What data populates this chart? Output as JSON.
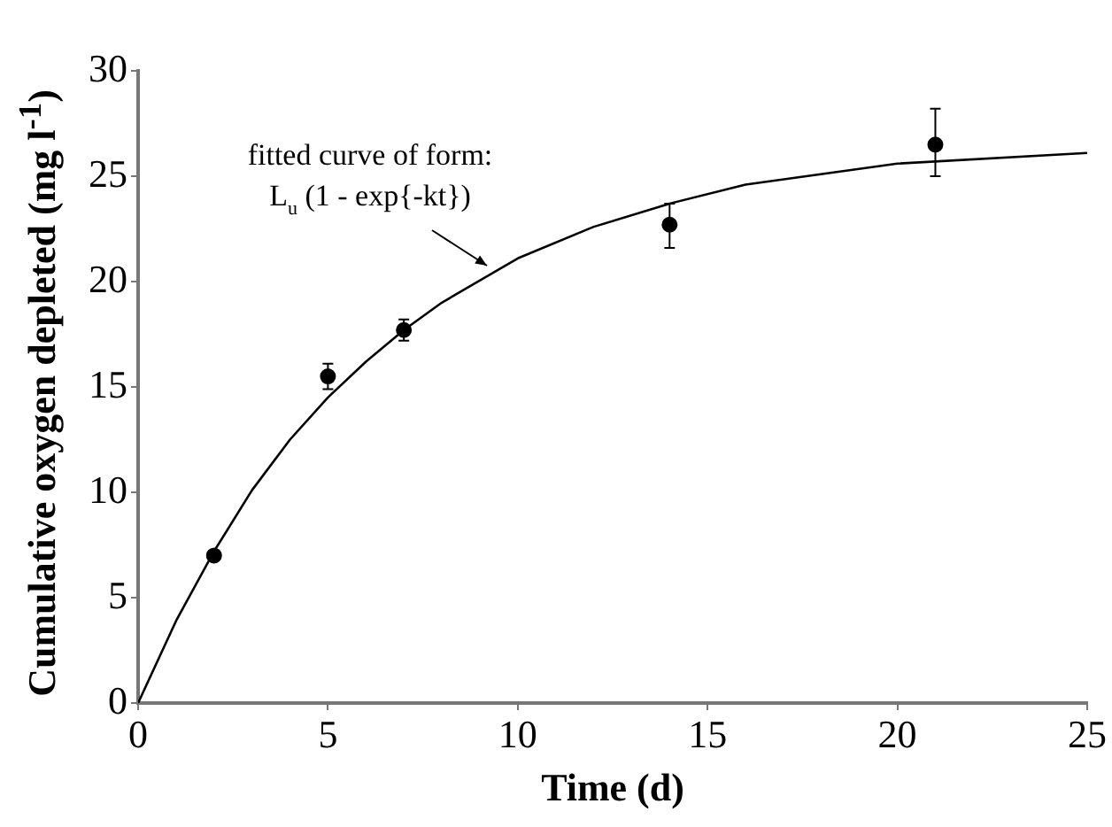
{
  "chart_data": {
    "type": "scatter",
    "xlabel": "Time (d)",
    "ylabel": "Cumulative oxygen depleted (mg l$^{-1}$)",
    "xlim": [
      0,
      25
    ],
    "xticks": [
      0,
      5,
      10,
      15,
      20,
      25
    ],
    "ylim": [
      0,
      30
    ],
    "yticks": [
      0,
      5,
      10,
      15,
      20,
      25,
      30
    ],
    "grid": false,
    "legend": false,
    "series": [
      {
        "type": "scatter",
        "color": "#000000",
        "marker": "circle",
        "x": [
          2,
          5,
          7,
          14,
          21
        ],
        "values": [
          7.0,
          15.5,
          17.7,
          22.7,
          26.5
        ],
        "errors": [
          null,
          0.6,
          0.5,
          [
            21.6,
            23.7
          ],
          [
            25.0,
            28.2
          ]
        ]
      },
      {
        "type": "line",
        "color": "#000000",
        "marker": "none",
        "x": [
          0,
          1,
          2,
          3,
          4,
          5,
          6,
          7,
          8,
          10,
          12,
          14,
          16,
          20,
          25
        ],
        "values": [
          0,
          3.9,
          7.2,
          10.1,
          12.5,
          14.5,
          16.2,
          17.7,
          19.0,
          21.1,
          22.6,
          23.7,
          24.6,
          25.6,
          26.1
        ]
      }
    ],
    "annotations": [
      "fitted curve of form:",
      "L$_{u}$ (1 - exp{-kt})"
    ]
  }
}
